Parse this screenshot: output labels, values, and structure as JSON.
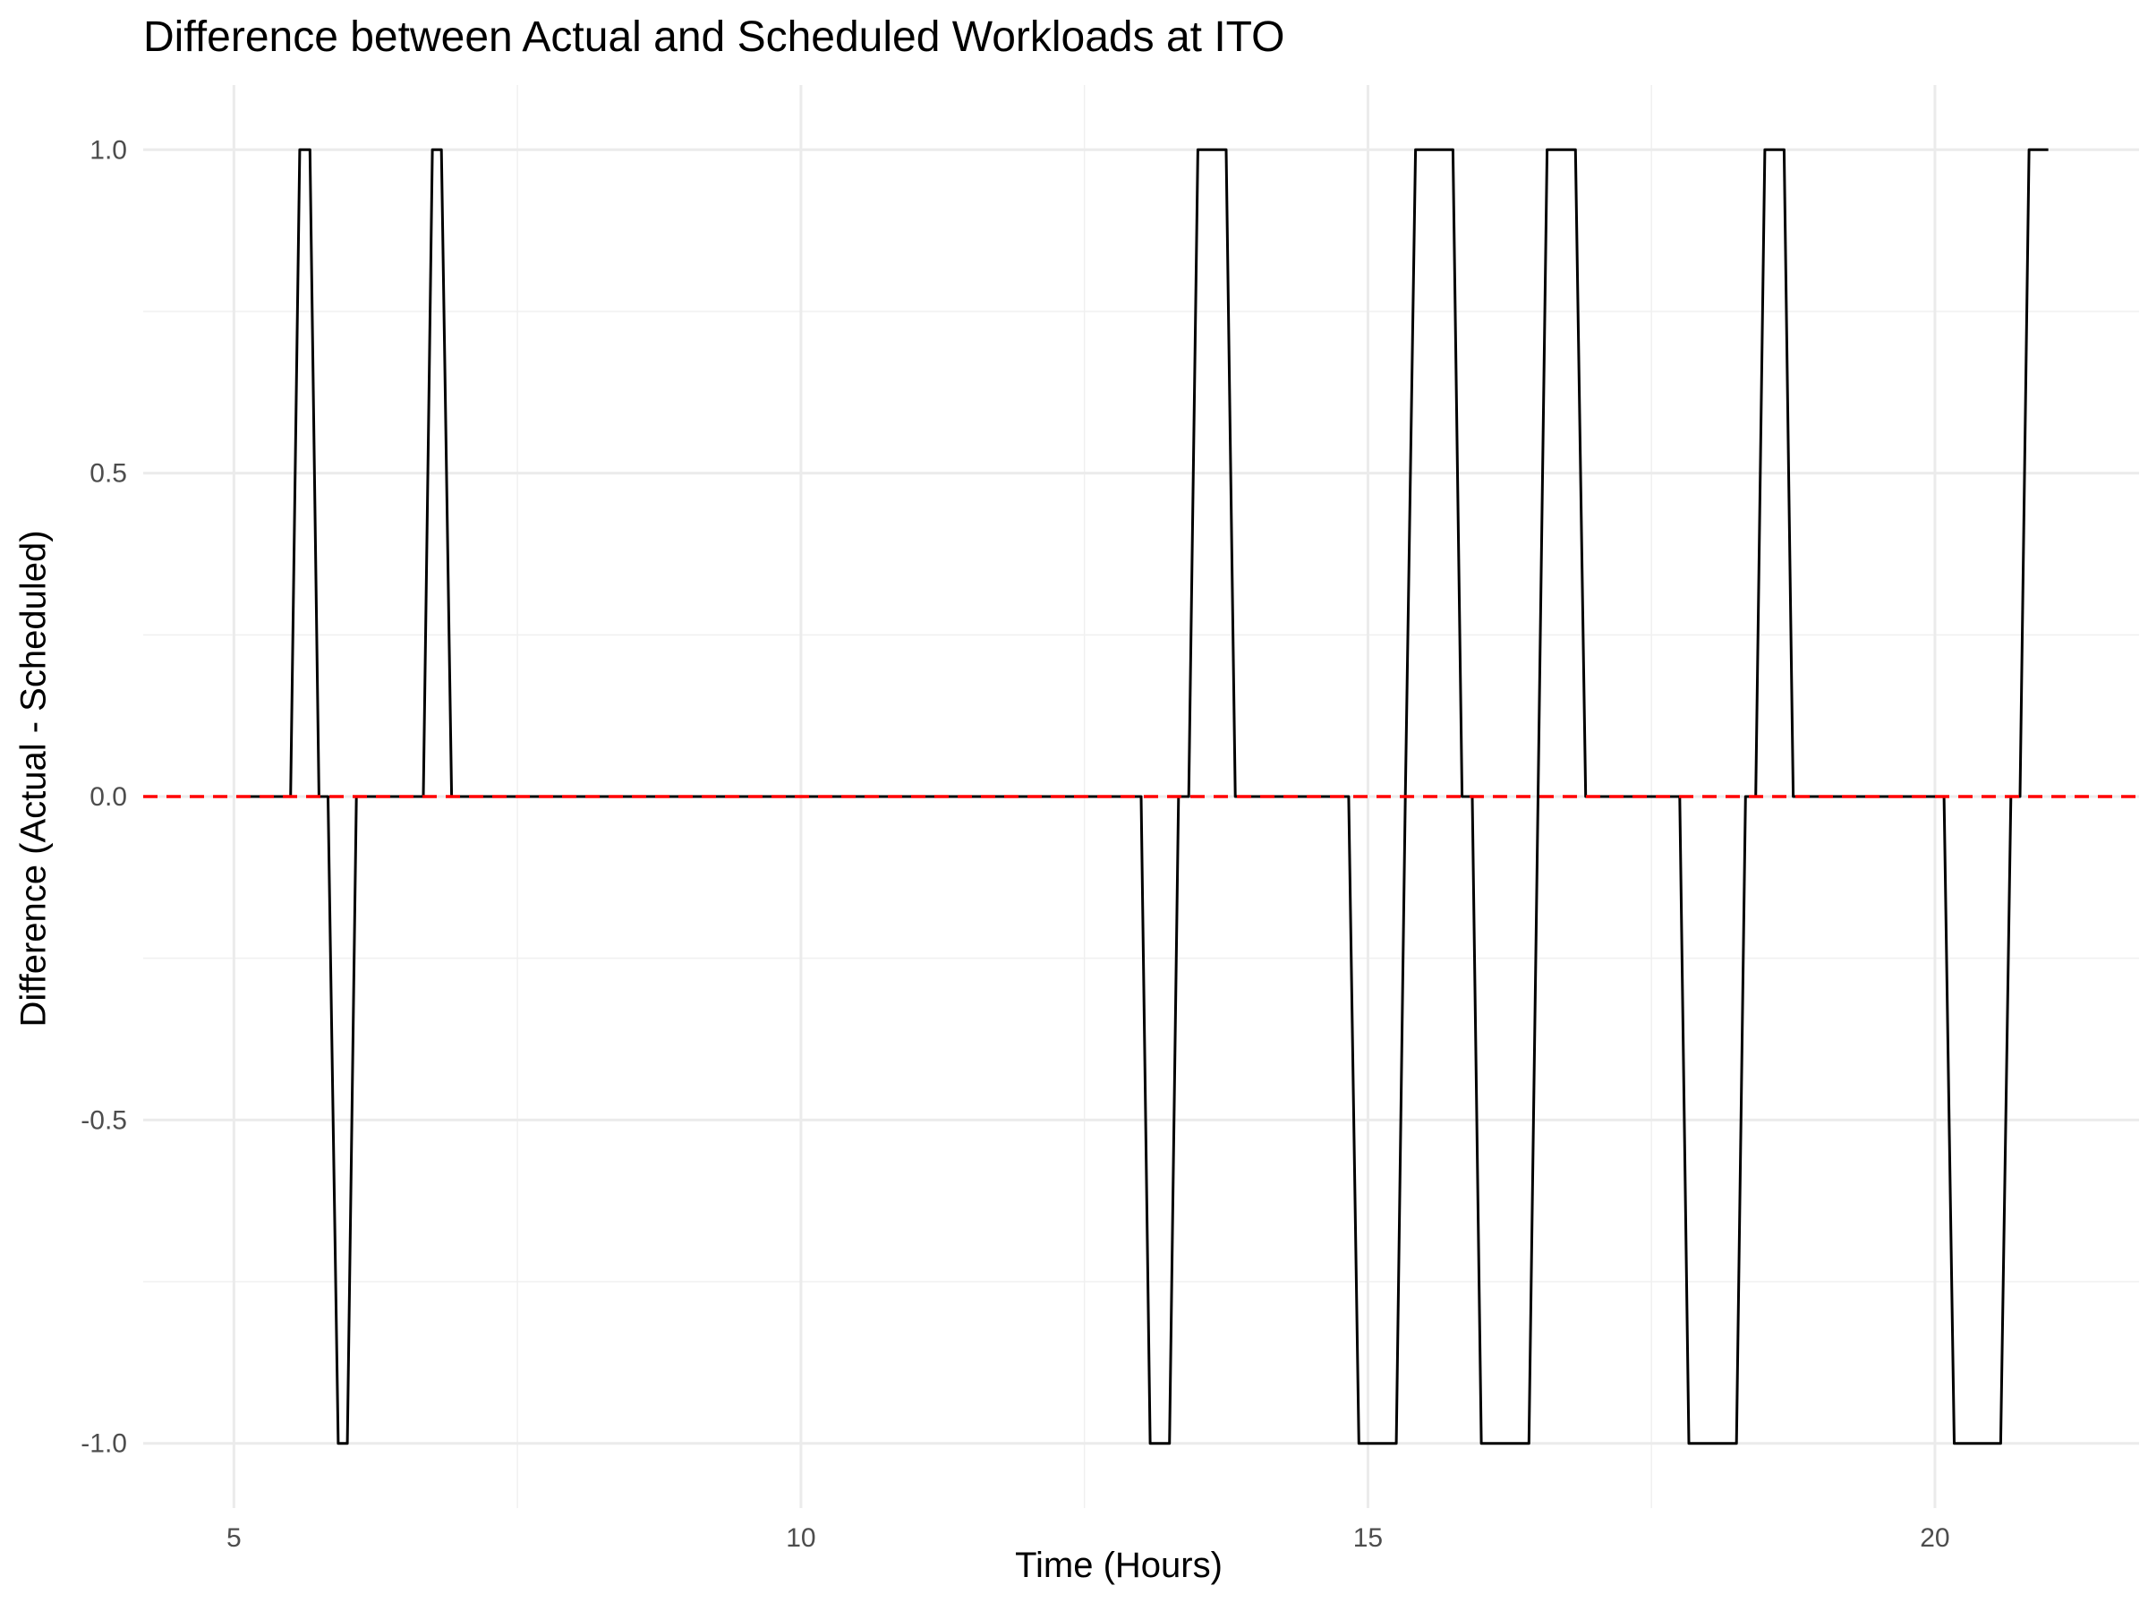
{
  "chart_data": {
    "type": "line",
    "title": "Difference between Actual and Scheduled Workloads at ITO",
    "xlabel": "Time (Hours)",
    "ylabel": "Difference (Actual - Scheduled)",
    "xlim": [
      4.2,
      21.8
    ],
    "ylim": [
      -1.1,
      1.1
    ],
    "x_ticks": [
      5,
      10,
      15,
      20
    ],
    "x_tick_labels": [
      "5",
      "10",
      "15",
      "20"
    ],
    "y_ticks": [
      -1.0,
      -0.5,
      0.0,
      0.5,
      1.0
    ],
    "y_tick_labels": [
      "-1.0",
      "-0.5",
      "0.0",
      "0.5",
      "1.0"
    ],
    "grid": true,
    "series": [
      {
        "color": "#000000",
        "x": [
          5.12,
          5.5,
          5.58,
          5.67,
          5.75,
          5.83,
          5.92,
          6.0,
          6.08,
          6.67,
          6.75,
          6.83,
          6.92,
          13.0,
          13.08,
          13.25,
          13.33,
          13.42,
          13.5,
          13.75,
          13.83,
          14.83,
          14.92,
          15.25,
          15.33,
          15.42,
          15.75,
          15.83,
          15.92,
          16.0,
          16.42,
          16.5,
          16.58,
          16.83,
          16.92,
          17.75,
          17.83,
          18.25,
          18.33,
          18.42,
          18.5,
          18.67,
          18.75,
          20.08,
          20.17,
          20.58,
          20.67,
          20.75,
          20.83,
          21.0
        ],
        "values": [
          0,
          0,
          1,
          1,
          0,
          0,
          -1,
          -1,
          0,
          0,
          1,
          1,
          0,
          0,
          -1,
          -1,
          0,
          0,
          1,
          1,
          0,
          0,
          -1,
          -1,
          0,
          1,
          1,
          0,
          0,
          -1,
          -1,
          0,
          1,
          1,
          0,
          0,
          -1,
          -1,
          0,
          0,
          1,
          1,
          0,
          0,
          -1,
          -1,
          0,
          0,
          1,
          1
        ]
      }
    ],
    "reference_line": {
      "y": 0.0,
      "color": "#ff0000",
      "style": "dashed"
    }
  }
}
